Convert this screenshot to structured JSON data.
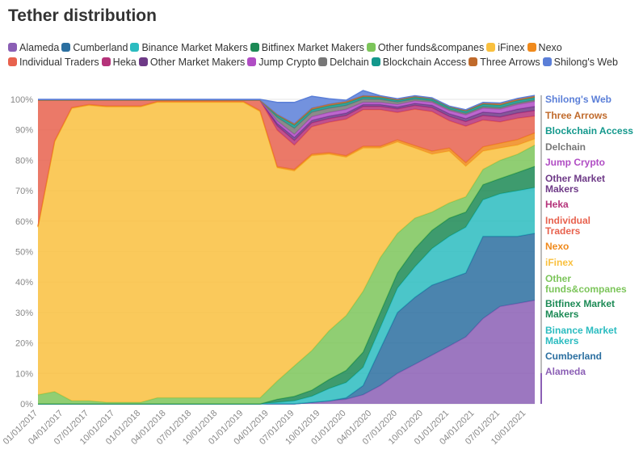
{
  "title": "Tether distribution",
  "chart_data": {
    "type": "area",
    "stacked": true,
    "normalized": true,
    "title": "Tether distribution",
    "ylim": [
      0,
      100
    ],
    "y_ticks": [
      "0%",
      "10%",
      "20%",
      "30%",
      "40%",
      "50%",
      "60%",
      "70%",
      "80%",
      "90%",
      "100%"
    ],
    "x_tick_labels": [
      "01/01/2017",
      "04/01/2017",
      "07/01/2017",
      "10/01/2017",
      "01/01/2018",
      "04/01/2018",
      "07/01/2018",
      "10/01/2018",
      "01/01/2019",
      "04/01/2019",
      "07/01/2019",
      "10/01/2019",
      "01/01/2020",
      "04/01/2020",
      "07/01/2020",
      "10/01/2020",
      "01/01/2021",
      "04/01/2021",
      "07/01/2021",
      "10/01/2021"
    ],
    "x": [
      "2017-01-01",
      "2017-03-01",
      "2017-05-01",
      "2017-07-01",
      "2017-09-01",
      "2017-11-01",
      "2018-01-01",
      "2018-03-01",
      "2018-05-01",
      "2018-07-01",
      "2018-09-01",
      "2018-11-01",
      "2019-01-01",
      "2019-03-01",
      "2019-05-01",
      "2019-07-01",
      "2019-09-01",
      "2019-11-01",
      "2020-01-01",
      "2020-03-01",
      "2020-05-01",
      "2020-07-01",
      "2020-09-01",
      "2020-11-01",
      "2021-01-01",
      "2021-03-01",
      "2021-05-01",
      "2021-07-01",
      "2021-09-01",
      "2021-11-01"
    ],
    "legend_position": "top",
    "series": [
      {
        "name": "Alameda",
        "color": "#8b5fb5",
        "values": [
          0,
          0,
          0,
          0,
          0,
          0,
          0,
          0,
          0,
          0,
          0,
          0,
          0,
          0,
          0,
          0,
          0.5,
          1,
          1.5,
          3,
          6,
          10,
          13,
          16,
          19,
          22,
          28,
          32,
          33,
          34
        ]
      },
      {
        "name": "Cumberland",
        "color": "#2b6fa0",
        "values": [
          0,
          0,
          0,
          0,
          0,
          0,
          0,
          0,
          0,
          0,
          0,
          0,
          0,
          0,
          0,
          0,
          0,
          0,
          0.5,
          3,
          12,
          20,
          22,
          23,
          22,
          21,
          27,
          23,
          22,
          22
        ]
      },
      {
        "name": "Binance Market Makers",
        "color": "#2bbcc0",
        "values": [
          0,
          0,
          0,
          0,
          0,
          0,
          0,
          0,
          0,
          0,
          0,
          0,
          0,
          0,
          0.5,
          1,
          2,
          4,
          5,
          6,
          7,
          8,
          10,
          12,
          14,
          15,
          12,
          14,
          15,
          15
        ]
      },
      {
        "name": "Bitfinex Market Makers",
        "color": "#1c8a55",
        "values": [
          0,
          0,
          0,
          0,
          0,
          0,
          0,
          0,
          0,
          0,
          0,
          0,
          0,
          0,
          1,
          1.5,
          2,
          3,
          4,
          5,
          5,
          5,
          6,
          6,
          6,
          5,
          5,
          5,
          6,
          7
        ]
      },
      {
        "name": "Other funds&companes",
        "color": "#7cc55a",
        "values": [
          3,
          4,
          1,
          1,
          0.5,
          0.5,
          0.5,
          2,
          2,
          2,
          2,
          2,
          2,
          2,
          6,
          10,
          13,
          16,
          18,
          20,
          18,
          13,
          10,
          6,
          5,
          5,
          5,
          6,
          6,
          7
        ]
      },
      {
        "name": "iFinex",
        "color": "#f9c03e",
        "values": [
          55,
          82,
          96,
          97,
          97,
          97,
          97,
          97,
          97,
          97,
          97,
          97,
          97,
          94,
          70,
          64,
          64,
          58,
          52,
          47,
          36,
          30,
          23,
          19,
          17,
          10,
          6,
          4,
          3,
          2
        ]
      },
      {
        "name": "Nexo",
        "color": "#f08a1c",
        "values": [
          0.3,
          0.3,
          0.3,
          0.3,
          0.3,
          0.3,
          0.3,
          0.3,
          0.3,
          0.3,
          0.3,
          0.3,
          0.3,
          0.3,
          0.4,
          0.5,
          0.5,
          0.5,
          0.5,
          0.6,
          0.6,
          0.7,
          0.8,
          1,
          1,
          1.2,
          1.4,
          1.6,
          1.8,
          2
        ]
      },
      {
        "name": "Individual Traders",
        "color": "#e8624e",
        "values": [
          41.4,
          13.4,
          2.4,
          1.4,
          1.9,
          1.9,
          1.9,
          0.4,
          0.4,
          0.4,
          0.4,
          0.4,
          0.4,
          3.4,
          12,
          8,
          9,
          10,
          12,
          12,
          12,
          9,
          12,
          13,
          9,
          12,
          8.8,
          7,
          7,
          5.5
        ]
      },
      {
        "name": "Heka",
        "color": "#b5337a",
        "values": [
          0,
          0,
          0,
          0,
          0,
          0,
          0,
          0,
          0,
          0,
          0,
          0,
          0,
          0,
          1.4,
          1.5,
          1.3,
          1.2,
          1.2,
          1.1,
          1.1,
          1.2,
          1.2,
          1.3,
          1.4,
          1.5,
          1.5,
          1.6,
          1.7,
          1.8
        ]
      },
      {
        "name": "Other Market Makers",
        "color": "#6e3a87",
        "values": [
          0,
          0,
          0,
          0,
          0,
          0,
          0,
          0,
          0,
          0,
          0,
          0,
          0,
          0,
          0.8,
          1,
          0.8,
          0.8,
          0.8,
          0.6,
          0.6,
          0.6,
          0.7,
          0.8,
          0.9,
          1,
          1.1,
          1.2,
          1.3,
          1.4
        ]
      },
      {
        "name": "Jump Crypto",
        "color": "#b04dc4",
        "values": [
          0,
          0,
          0,
          0,
          0,
          0,
          0,
          0,
          0,
          0,
          0,
          0,
          0,
          0,
          0.8,
          1,
          1.2,
          1.2,
          1.2,
          0.7,
          0.7,
          0.8,
          0.8,
          0.9,
          1,
          1.2,
          1.3,
          1.4,
          1.5,
          1.6
        ]
      },
      {
        "name": "Delchain",
        "color": "#777777",
        "values": [
          0,
          0,
          0,
          0,
          0,
          0,
          0,
          0,
          0,
          0,
          0,
          0,
          0,
          0,
          1.2,
          2,
          1.5,
          1.4,
          1.3,
          1.1,
          1,
          0.8,
          0.6,
          0.5,
          0.5,
          0.5,
          0.5,
          0.5,
          0.5,
          0.5
        ]
      },
      {
        "name": "Blockchain Access",
        "color": "#13988c",
        "values": [
          0,
          0,
          0,
          0,
          0,
          0,
          0,
          0,
          0,
          0,
          0,
          0,
          0,
          0,
          0.7,
          1,
          0.8,
          0.8,
          0.8,
          0.7,
          0.6,
          0.6,
          0.6,
          0.6,
          0.6,
          0.7,
          0.8,
          0.8,
          0.8,
          0.8
        ]
      },
      {
        "name": "Three Arrows",
        "color": "#c06a2b",
        "values": [
          0,
          0,
          0,
          0,
          0,
          0,
          0,
          0,
          0,
          0,
          0,
          0,
          0,
          0,
          0.2,
          0.5,
          0.5,
          0.5,
          0.5,
          0.4,
          0.4,
          0.3,
          0.3,
          0.3,
          0.3,
          0.3,
          0.4,
          0.5,
          0.5,
          0.5
        ]
      },
      {
        "name": "Shilong's Web",
        "color": "#5b7fd8",
        "values": [
          0.3,
          0.3,
          0.3,
          0.3,
          0.3,
          0.3,
          0.3,
          0.3,
          0.3,
          0.3,
          0.3,
          0.3,
          0.3,
          0.3,
          4,
          7,
          3.9,
          1.8,
          0.4,
          1.7,
          0.2,
          0.2,
          0.2,
          0.1,
          0.1,
          0.2,
          0.2,
          0.2,
          0.2,
          0.2
        ]
      }
    ],
    "end_labels": [
      [
        "Shilong's Web"
      ],
      [
        "Three Arrows"
      ],
      [
        "Blockchain Access"
      ],
      [
        "Delchain"
      ],
      [
        "Jump Crypto"
      ],
      [
        "Other Market",
        "Makers"
      ],
      [
        "Heka"
      ],
      [
        "Individual",
        "Traders"
      ],
      [
        "Nexo"
      ],
      [
        "iFinex"
      ],
      [
        "Other",
        "funds&companes"
      ],
      [
        "Bitfinex Market",
        "Makers"
      ],
      [
        "Binance Market",
        "Makers"
      ],
      [
        "Cumberland"
      ],
      [
        "Alameda"
      ]
    ]
  }
}
